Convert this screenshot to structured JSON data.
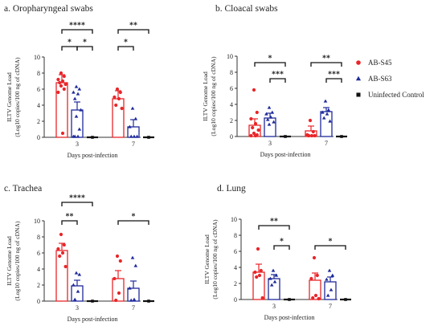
{
  "chart_data": [
    {
      "type": "bar",
      "panel_label": "a.",
      "title": "Oropharyngeal swabs",
      "xlabel": "Days post-infection",
      "ylabel_line1": "ILTV Genome Load",
      "ylabel_line2": "(Log10 copies/100 ng of cDNA)",
      "categories": [
        "3",
        "7"
      ],
      "ylim": [
        0,
        10
      ],
      "yticks": [
        "0",
        "2",
        "4",
        "6",
        "8",
        "10"
      ],
      "series": [
        {
          "name": "AB-S45",
          "values": [
            6.8,
            4.8
          ],
          "errors": [
            1.0,
            1.0
          ],
          "points": [
            [
              8.0,
              7.6,
              7.2,
              7.0,
              6.8,
              6.6,
              6.4,
              6.0,
              5.6,
              0.5
            ],
            [
              6.0,
              5.6,
              5.0,
              4.8,
              4.0,
              3.6
            ]
          ]
        },
        {
          "name": "AB-S63",
          "values": [
            3.4,
            1.3
          ],
          "errors": [
            1.0,
            0.9
          ],
          "points": [
            [
              6.3,
              6.0,
              5.6,
              5.4,
              4.8,
              3.4,
              2.6,
              1.0,
              0.1,
              0.1,
              0.1
            ],
            [
              3.6,
              2.3,
              1.3,
              0.1,
              0.1,
              0.1
            ]
          ]
        },
        {
          "name": "Uninfected Control",
          "values": [
            0,
            0
          ],
          "errors": [
            0,
            0
          ],
          "points": [
            [
              0
            ],
            [
              0
            ]
          ]
        }
      ],
      "significance": [
        {
          "label": "****",
          "group": 0,
          "from": 0,
          "to": 2,
          "level": 13.4
        },
        {
          "label": "*",
          "group": 0,
          "from": 0,
          "to": 1,
          "level": 11.3
        },
        {
          "label": "*",
          "group": 0,
          "from": 1,
          "to": 2,
          "level": 11.3
        },
        {
          "label": "**",
          "group": 1,
          "from": 0,
          "to": 2,
          "level": 13.4
        },
        {
          "label": "*",
          "group": 1,
          "from": 0,
          "to": 1,
          "level": 11.3
        }
      ]
    },
    {
      "type": "bar",
      "panel_label": "b.",
      "title": "Cloacal swabs",
      "xlabel": "Days post-infection",
      "ylabel_line1": "ILTV Genome Load",
      "ylabel_line2": "(Log10 copies/100 ng of cDNA)",
      "categories": [
        "3",
        "7"
      ],
      "ylim": [
        0,
        10
      ],
      "yticks": [
        "0",
        "2",
        "4",
        "6",
        "8",
        "10"
      ],
      "series": [
        {
          "name": "AB-S45",
          "values": [
            1.4,
            0.7
          ],
          "errors": [
            0.8,
            0.6
          ],
          "points": [
            [
              5.8,
              3.0,
              2.2,
              1.6,
              1.1,
              0.8,
              0.4,
              0.2,
              0.1,
              0.1
            ],
            [
              2.0,
              0.6,
              0.2,
              0.1,
              0.1,
              0.1
            ]
          ]
        },
        {
          "name": "AB-S63",
          "values": [
            2.3,
            3.1
          ],
          "errors": [
            0.6,
            0.5
          ],
          "points": [
            [
              3.6,
              3.0,
              2.8,
              2.4,
              2.1,
              1.8,
              1.5
            ],
            [
              4.4,
              3.3,
              3.0,
              2.8,
              2.3,
              1.9
            ]
          ]
        },
        {
          "name": "Uninfected Control",
          "values": [
            0,
            0
          ],
          "errors": [
            0,
            0
          ],
          "points": [
            [
              0
            ],
            [
              0
            ]
          ]
        }
      ],
      "significance": [
        {
          "label": "*",
          "group": 0,
          "from": 0,
          "to": 2,
          "level": 9.2
        },
        {
          "label": "***",
          "group": 0,
          "from": 1,
          "to": 2,
          "level": 7.2
        },
        {
          "label": "**",
          "group": 1,
          "from": 0,
          "to": 2,
          "level": 9.2
        },
        {
          "label": "***",
          "group": 1,
          "from": 1,
          "to": 2,
          "level": 7.2
        }
      ]
    },
    {
      "type": "bar",
      "panel_label": "c.",
      "title": "Trachea",
      "xlabel": "Days post-infection",
      "ylabel_line1": "ILTV Genome Load",
      "ylabel_line2": "(Log10 copies/100 ng of cDNA)",
      "categories": [
        "3",
        "7"
      ],
      "ylim": [
        0,
        10
      ],
      "yticks": [
        "0",
        "2",
        "4",
        "6",
        "8",
        "10"
      ],
      "series": [
        {
          "name": "AB-S45",
          "values": [
            6.3,
            2.8
          ],
          "errors": [
            0.9,
            1.0
          ],
          "points": [
            [
              8.3,
              7.0,
              6.5,
              6.0,
              5.6,
              4.3
            ],
            [
              5.6,
              5.0,
              2.8,
              1.0,
              0.1
            ]
          ]
        },
        {
          "name": "AB-S63",
          "values": [
            1.9,
            1.6
          ],
          "errors": [
            0.7,
            0.9
          ],
          "points": [
            [
              3.5,
              3.3,
              2.0,
              1.2,
              0.2
            ],
            [
              5.4,
              4.4,
              1.6,
              0.2,
              0.1
            ]
          ]
        },
        {
          "name": "Uninfected Control",
          "values": [
            0,
            0
          ],
          "errors": [
            0,
            0
          ],
          "points": [
            [
              0
            ],
            [
              0
            ]
          ]
        }
      ],
      "significance": [
        {
          "label": "****",
          "group": 0,
          "from": 0,
          "to": 2,
          "level": 12.3
        },
        {
          "label": "**",
          "group": 0,
          "from": 0,
          "to": 1,
          "level": 10.0
        },
        {
          "label": "*",
          "group": 1,
          "from": 0,
          "to": 2,
          "level": 10.0
        }
      ]
    },
    {
      "type": "bar",
      "panel_label": "d.",
      "title": "Lung",
      "xlabel": "Days post-infection",
      "ylabel_line1": "ILTV Genome Load",
      "ylabel_line2": "(Log10 copies/100 ng of cDNA)",
      "categories": [
        "3",
        "7"
      ],
      "ylim": [
        0,
        10
      ],
      "yticks": [
        "0",
        "2",
        "4",
        "6",
        "8",
        "10"
      ],
      "series": [
        {
          "name": "AB-S45",
          "values": [
            3.4,
            2.4
          ],
          "errors": [
            1.0,
            0.9
          ],
          "points": [
            [
              6.3,
              3.6,
              3.4,
              3.0,
              2.8,
              0.2
            ],
            [
              5.2,
              3.0,
              2.6,
              0.5,
              0.2,
              0.1
            ]
          ]
        },
        {
          "name": "AB-S63",
          "values": [
            2.6,
            2.2
          ],
          "errors": [
            0.5,
            0.6
          ],
          "points": [
            [
              3.6,
              3.0,
              2.6,
              2.2,
              1.8
            ],
            [
              3.6,
              3.0,
              2.5,
              1.2,
              0.5
            ]
          ]
        },
        {
          "name": "Uninfected Control",
          "values": [
            0,
            0
          ],
          "errors": [
            0,
            0
          ],
          "points": [
            [
              0
            ],
            [
              0
            ]
          ]
        }
      ],
      "significance": [
        {
          "label": "**",
          "group": 0,
          "from": 0,
          "to": 2,
          "level": 9.2
        },
        {
          "label": "*",
          "group": 0,
          "from": 1,
          "to": 2,
          "level": 6.7
        },
        {
          "label": "*",
          "group": 1,
          "from": 0,
          "to": 2,
          "level": 6.7
        }
      ]
    }
  ],
  "legend": [
    {
      "label": "AB-S45",
      "marker": "circle",
      "color": "#e8262a"
    },
    {
      "label": "AB-S63",
      "marker": "triangle",
      "color": "#1f2a9a"
    },
    {
      "label": "Uninfected Control",
      "marker": "square",
      "color": "#111111"
    }
  ],
  "colors": {
    "AB-S45": "#e8262a",
    "AB-S63": "#1f2a9a",
    "Uninfected Control": "#111111"
  }
}
